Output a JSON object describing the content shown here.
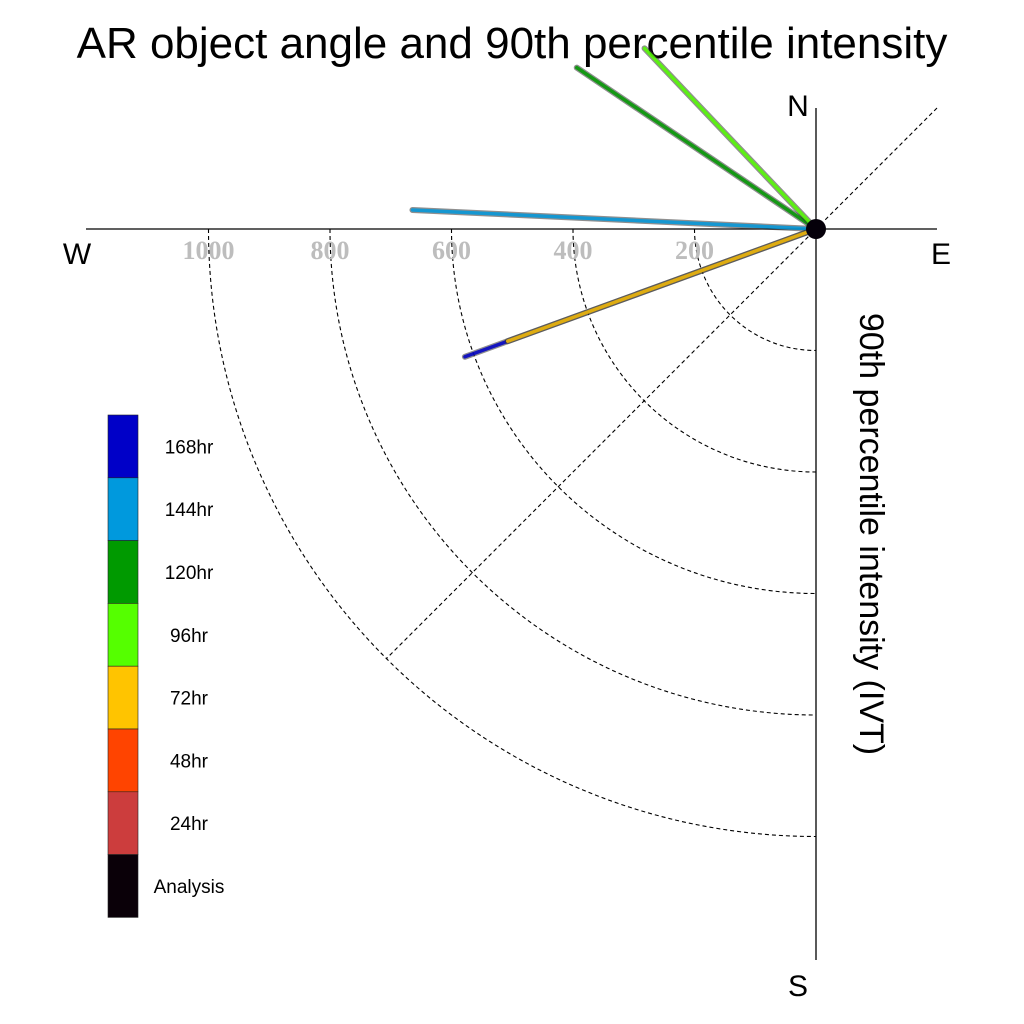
{
  "chart_data": {
    "type": "polar-vector",
    "title": "AR object angle and 90th percentile intensity",
    "radial_label": "90th percentile intensity (IVT)",
    "directions": {
      "north": "N",
      "east": "E",
      "south": "S",
      "west": "W"
    },
    "radial_ticks": [
      200,
      400,
      600,
      800,
      1000
    ],
    "radial_tick_labels": [
      "200",
      "400",
      "600",
      "800",
      "1000"
    ],
    "rmax": 1200,
    "series": [
      {
        "name": "168hr",
        "color": "#0000c8",
        "angle_deg": 200,
        "intensity": 615
      },
      {
        "name": "144hr",
        "color": "#0099dd",
        "angle_deg": 177.3,
        "intensity": 665
      },
      {
        "name": "120hr",
        "color": "#009a00",
        "angle_deg": 146,
        "intensity": 475
      },
      {
        "name": "96hr",
        "color": "#55ff00",
        "angle_deg": 133.5,
        "intensity": 410
      },
      {
        "name": "72hr",
        "color": "#ffc400",
        "angle_deg": 200,
        "intensity": 540
      }
    ],
    "legend": [
      {
        "label": "168hr",
        "color": "#0000c8"
      },
      {
        "label": "144hr",
        "color": "#0099dd"
      },
      {
        "label": "120hr",
        "color": "#009a00"
      },
      {
        "label": "96hr",
        "color": "#55ff00"
      },
      {
        "label": "72hr",
        "color": "#ffc400"
      },
      {
        "label": "48hr",
        "color": "#ff4400"
      },
      {
        "label": "24hr",
        "color": "#cc3d3d"
      },
      {
        "label": "Analysis",
        "color": "#0a0008"
      }
    ]
  }
}
